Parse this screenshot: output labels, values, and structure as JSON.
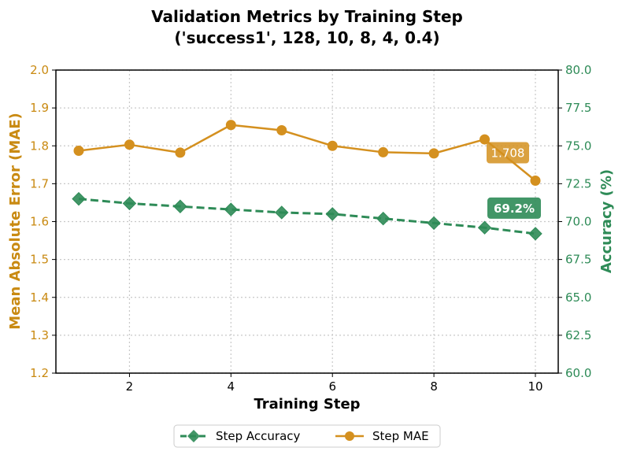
{
  "chart_data": {
    "type": "line",
    "title_line1": "Validation Metrics by Training Step",
    "title_line2": "('success1', 128, 10, 8, 4, 0.4)",
    "xlabel": "Training Step",
    "ylabel_left": "Mean Absolute Error (MAE)",
    "ylabel_right": "Accuracy (%)",
    "xlim": [
      0.55,
      10.45
    ],
    "ylim_left": [
      1.2,
      2.0
    ],
    "ylim_right": [
      60.0,
      80.0
    ],
    "x_ticks": [
      2,
      4,
      6,
      8,
      10
    ],
    "y_left_ticks": [
      "1.2",
      "1.3",
      "1.4",
      "1.5",
      "1.6",
      "1.7",
      "1.8",
      "1.9",
      "2.0"
    ],
    "y_right_ticks": [
      "60.0",
      "62.5",
      "65.0",
      "67.5",
      "70.0",
      "72.5",
      "75.0",
      "77.5",
      "80.0"
    ],
    "grid": true,
    "legend_position": "bottom-center",
    "x": [
      1,
      2,
      3,
      4,
      5,
      6,
      7,
      8,
      9,
      10
    ],
    "series": [
      {
        "name": "Step Accuracy",
        "axis": "right",
        "values": [
          71.5,
          71.2,
          71.0,
          70.8,
          70.6,
          70.5,
          70.2,
          69.9,
          69.6,
          69.2
        ],
        "color": "#2e8b57",
        "marker": "diamond",
        "line_style": "dashed"
      },
      {
        "name": "Step MAE",
        "axis": "left",
        "values": [
          1.787,
          1.803,
          1.782,
          1.855,
          1.841,
          1.8,
          1.783,
          1.78,
          1.817,
          1.708
        ],
        "color": "#d4901f",
        "marker": "circle",
        "line_style": "solid"
      }
    ],
    "annotations": {
      "mae_last": "1.708",
      "acc_last": "69.2%"
    },
    "colors": {
      "mae_axis": "#c98a12",
      "acc_axis": "#2e8b57"
    }
  }
}
